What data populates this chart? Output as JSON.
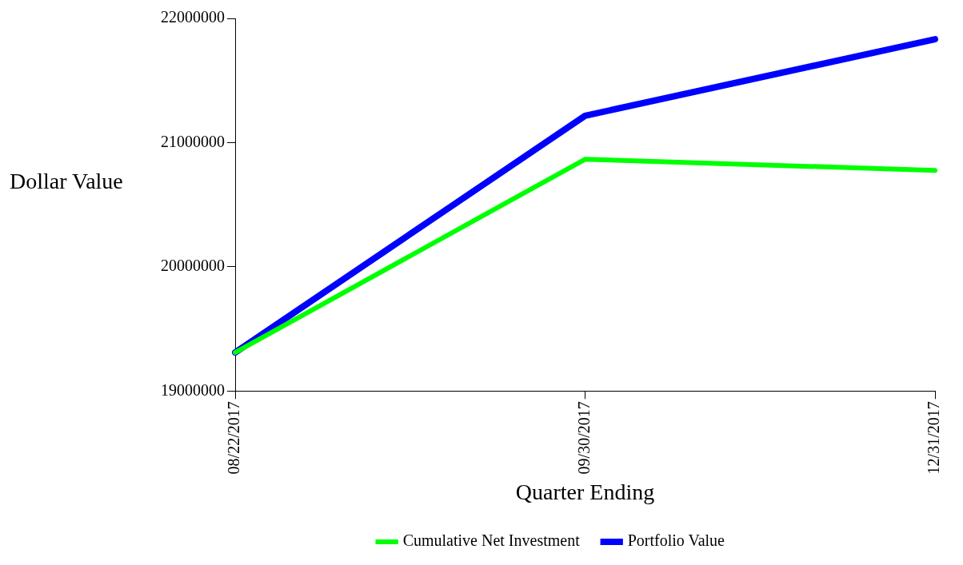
{
  "chart_data": {
    "type": "line",
    "xlabel": "Quarter Ending",
    "ylabel": "Dollar Value",
    "categories": [
      "08/22/2017",
      "09/30/2017",
      "12/31/2017"
    ],
    "series": [
      {
        "name": "Portfolio Value",
        "color": "#0000ff",
        "values": [
          19310000,
          21216000,
          21832000
        ]
      },
      {
        "name": "Cumulative Net Investment",
        "color": "#00ff00",
        "values": [
          19310000,
          20866000,
          20776000
        ]
      }
    ],
    "ylim": [
      19000000,
      22000000
    ],
    "yticks": [
      19000000,
      20000000,
      21000000,
      22000000
    ],
    "grid": false,
    "legend": "bottom",
    "marker": "none",
    "line_style": "solid"
  }
}
